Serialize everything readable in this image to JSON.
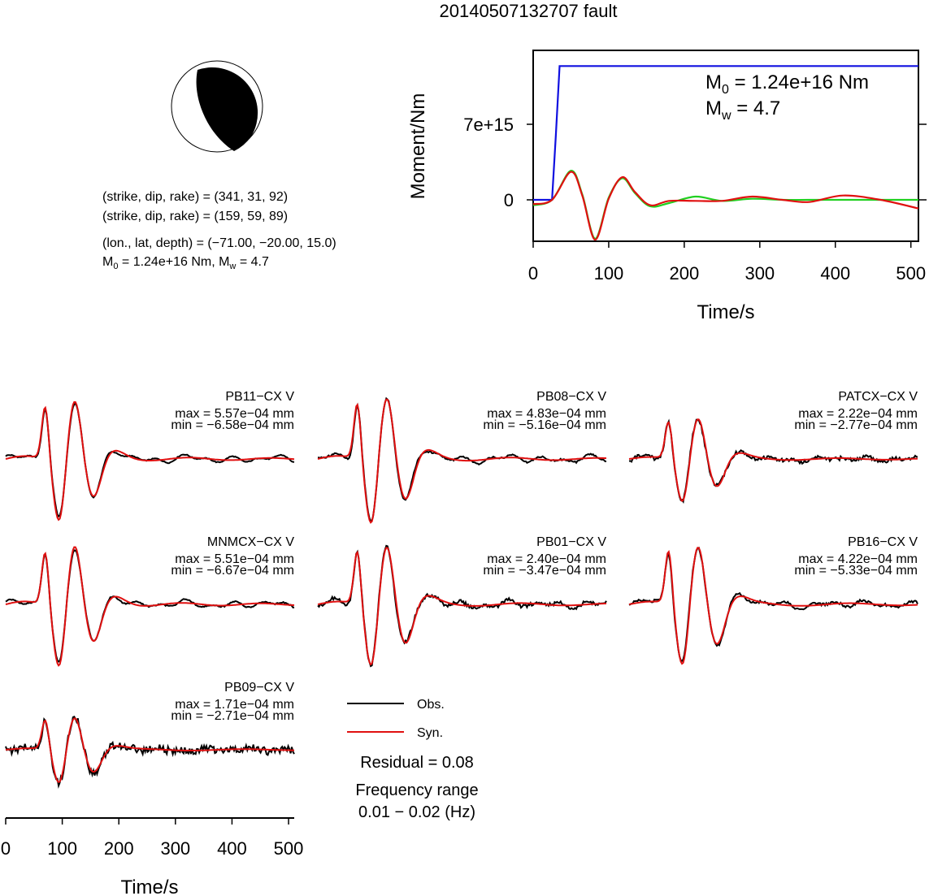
{
  "title": "20140507132707 fault",
  "mechanism": {
    "line1": "(strike, dip, rake) = (341, 31, 92)",
    "line2": "(strike, dip, rake) = (159, 59, 89)",
    "line3": "(lon., lat, depth) = (−71.00, −20.00, 15.0)",
    "line4_m0_value": " = 1.24e+16 Nm, M",
    "line4_mw_value": " = 4.7"
  },
  "moment_panel": {
    "annotation_m0_value": " = 1.24e+16 Nm",
    "annotation_mw_value": " = 4.7",
    "ylabel": "Moment/Nm",
    "xlabel": "Time/s",
    "yticks": [
      "7e+15",
      "0"
    ],
    "xticks": [
      "0",
      "100",
      "200",
      "300",
      "400",
      "500"
    ]
  },
  "stations": [
    {
      "name": "PB11−CX V",
      "max": "max = 5.57e−04 mm",
      "min": "min = −6.58e−04 mm"
    },
    {
      "name": "PB08−CX V",
      "max": "max = 4.83e−04 mm",
      "min": "min = −5.16e−04 mm"
    },
    {
      "name": "PATCX−CX V",
      "max": "max = 2.22e−04 mm",
      "min": "min = −2.77e−04 mm"
    },
    {
      "name": "MNMCX−CX V",
      "max": "max = 5.51e−04 mm",
      "min": "min = −6.67e−04 mm"
    },
    {
      "name": "PB01−CX V",
      "max": "max = 2.40e−04 mm",
      "min": "min = −3.47e−04 mm"
    },
    {
      "name": "PB16−CX V",
      "max": "max = 4.22e−04 mm",
      "min": "min = −5.33e−04 mm"
    },
    {
      "name": "PB09−CX V",
      "max": "max = 1.71e−04 mm",
      "min": "min = −2.71e−04 mm"
    }
  ],
  "legend": {
    "obs": "Obs.",
    "syn": "Syn.",
    "residual": "Residual = 0.08",
    "freq_title": "Frequency range",
    "freq_value": "0.01 − 0.02 (Hz)"
  },
  "bottom_axis": {
    "xlabel": "Time/s",
    "xticks": [
      "0",
      "100",
      "200",
      "300",
      "400",
      "500"
    ]
  },
  "colors": {
    "obs": "#000000",
    "syn": "#e01010",
    "moment_cumulative": "#1010e0",
    "moment_rate_a": "#20d020",
    "moment_rate_b": "#e01010"
  },
  "chart_data": [
    {
      "type": "line",
      "title": "",
      "xlabel": "Time/s",
      "ylabel": "Moment/Nm",
      "xlim": [
        0,
        510
      ],
      "x_ticks": [
        0,
        100,
        200,
        300,
        400,
        500
      ],
      "y_ticks": [
        "0",
        "7e+15"
      ],
      "series": [
        {
          "x": [
            0,
            25,
            30,
            35,
            510
          ],
          "y": [
            0,
            0,
            6000000000000000.0,
            1.24e+16,
            1.24e+16
          ]
        },
        {
          "x": [
            0,
            25,
            50,
            65,
            82,
            100,
            118,
            135,
            155,
            180,
            215,
            250,
            290,
            330,
            365,
            410,
            460,
            510
          ],
          "y": [
            -500000000000000.0,
            0,
            2700000000000000.0,
            500000000000000.0,
            -3600000000000000.0,
            200000000000000.0,
            2000000000000000.0,
            600000000000000.0,
            -600000000000000.0,
            -300000000000000.0,
            300000000000000.0,
            -100000000000000.0,
            100000000000000.0,
            0,
            0,
            0,
            0,
            0
          ]
        },
        {
          "x": [
            0,
            25,
            50,
            65,
            82,
            100,
            118,
            135,
            155,
            180,
            215,
            250,
            290,
            330,
            365,
            410,
            460,
            510
          ],
          "y": [
            -400000000000000.0,
            0,
            2600000000000000.0,
            400000000000000.0,
            -3700000000000000.0,
            100000000000000.0,
            2100000000000000.0,
            700000000000000.0,
            -500000000000000.0,
            -100000000000000.0,
            -100000000000000.0,
            -100000000000000.0,
            300000000000000.0,
            0,
            -200000000000000.0,
            400000000000000.0,
            0,
            -800000000000000.0
          ]
        }
      ]
    },
    {
      "type": "line",
      "title": "",
      "xlabel": "Time/s",
      "xlim": [
        0,
        510
      ],
      "x_ticks": [
        0,
        100,
        200,
        300,
        400,
        500
      ],
      "panels": [
        "PB11−CX V",
        "PB08−CX V",
        "PATCX−CX V",
        "MNMCX−CX V",
        "PB01−CX V",
        "PB16−CX V",
        "PB09−CX V"
      ],
      "series": [
        {
          "name": "Obs."
        },
        {
          "name": "Syn."
        }
      ]
    }
  ]
}
